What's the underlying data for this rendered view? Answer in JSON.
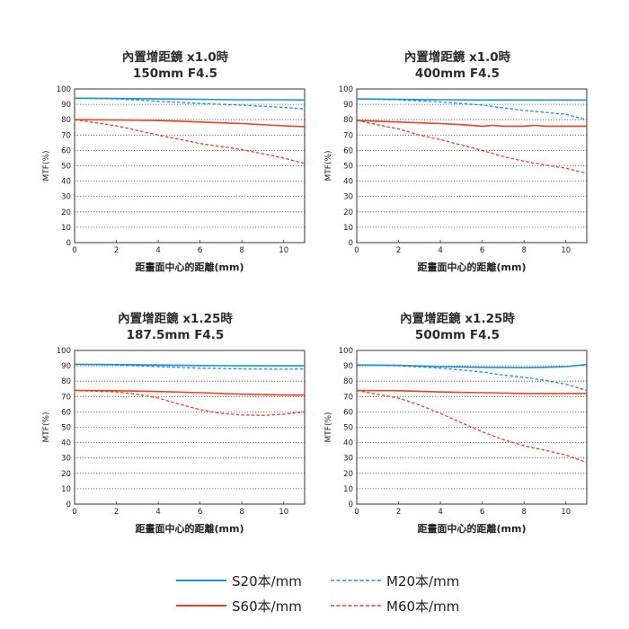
{
  "colors": {
    "s20": "#1a8fe0",
    "m20": "#1a8fe0",
    "s60": "#e8401c",
    "m60": "#e8401c",
    "grid": "#555555",
    "axis": "#333333"
  },
  "legend": {
    "s20": "S20本/mm",
    "m20": "M20本/mm",
    "s60": "S60本/mm",
    "m60": "M60本/mm"
  },
  "chart_data": [
    {
      "type": "line",
      "title": "內置增距鏡 x1.0時",
      "subtitle": "150mm F4.5",
      "xlabel": "距畫面中心的距離(mm)",
      "ylabel": "MTF(%)",
      "xlim": [
        0,
        11
      ],
      "ylim": [
        0,
        100
      ],
      "xticks": [
        0,
        2,
        4,
        6,
        8,
        10
      ],
      "yticks": [
        0,
        10,
        20,
        30,
        40,
        50,
        60,
        70,
        80,
        90,
        100
      ],
      "grid": true,
      "series": [
        {
          "name": "S20本/mm",
          "style": "solid",
          "color": "#1a8fe0",
          "x": [
            0,
            2,
            4,
            6,
            8,
            10,
            11
          ],
          "y": [
            94,
            93.8,
            93.5,
            93.2,
            93,
            93,
            92.8
          ]
        },
        {
          "name": "M20本/mm",
          "style": "dashed",
          "color": "#1a8fe0",
          "x": [
            0,
            2,
            4,
            6,
            8,
            10,
            11
          ],
          "y": [
            94,
            93.5,
            92,
            90.5,
            89.5,
            88,
            87
          ]
        },
        {
          "name": "S60本/mm",
          "style": "solid",
          "color": "#e8401c",
          "x": [
            0,
            2,
            4,
            6,
            8,
            10,
            11
          ],
          "y": [
            80,
            79.8,
            79.5,
            78.5,
            77.5,
            76,
            75.5
          ]
        },
        {
          "name": "M60本/mm",
          "style": "dashed",
          "color": "#e8401c",
          "x": [
            0,
            2,
            4,
            6,
            8,
            10,
            11
          ],
          "y": [
            80,
            76,
            70,
            64.5,
            60.5,
            55,
            51.5
          ]
        }
      ]
    },
    {
      "type": "line",
      "title": "內置增距鏡 x1.0時",
      "subtitle": "400mm F4.5",
      "xlabel": "距畫面中心的距離(mm)",
      "ylabel": "MTF(%)",
      "xlim": [
        0,
        11
      ],
      "ylim": [
        0,
        100
      ],
      "xticks": [
        0,
        2,
        4,
        6,
        8,
        10
      ],
      "yticks": [
        0,
        10,
        20,
        30,
        40,
        50,
        60,
        70,
        80,
        90,
        100
      ],
      "grid": true,
      "series": [
        {
          "name": "S20本/mm",
          "style": "solid",
          "color": "#1a8fe0",
          "x": [
            0,
            2,
            4,
            6,
            8,
            10,
            11
          ],
          "y": [
            93.5,
            93.2,
            93,
            92.8,
            92.8,
            92.8,
            92.8
          ]
        },
        {
          "name": "M20本/mm",
          "style": "dashed",
          "color": "#1a8fe0",
          "x": [
            0,
            2,
            4,
            6,
            8,
            10,
            11
          ],
          "y": [
            93.5,
            93,
            91.5,
            89.5,
            86,
            83.5,
            80
          ]
        },
        {
          "name": "S60本/mm",
          "style": "solid",
          "color": "#e8401c",
          "x": [
            0,
            2,
            4,
            5,
            6,
            6.5,
            7,
            8,
            8.5,
            9,
            10,
            11
          ],
          "y": [
            79.5,
            78.5,
            77.5,
            76.8,
            75.8,
            76.3,
            75.8,
            75.8,
            76.3,
            75.8,
            75.8,
            75.8
          ]
        },
        {
          "name": "M60本/mm",
          "style": "dashed",
          "color": "#e8401c",
          "x": [
            0,
            2,
            3,
            4,
            6,
            7,
            8,
            9,
            10,
            11
          ],
          "y": [
            79.5,
            74,
            70,
            67,
            60,
            56,
            53,
            50.5,
            48.5,
            45
          ]
        }
      ]
    },
    {
      "type": "line",
      "title": "內置增距鏡 x1.25時",
      "subtitle": "187.5mm F4.5",
      "xlabel": "距畫面中心的距離(mm)",
      "ylabel": "MTF(%)",
      "xlim": [
        0,
        11
      ],
      "ylim": [
        0,
        100
      ],
      "xticks": [
        0,
        2,
        4,
        6,
        8,
        10
      ],
      "yticks": [
        0,
        10,
        20,
        30,
        40,
        50,
        60,
        70,
        80,
        90,
        100
      ],
      "grid": true,
      "series": [
        {
          "name": "S20本/mm",
          "style": "solid",
          "color": "#1a8fe0",
          "x": [
            0,
            2,
            4,
            6,
            8,
            10,
            11
          ],
          "y": [
            91,
            90.8,
            90.5,
            90.2,
            90,
            90,
            90
          ]
        },
        {
          "name": "M20本/mm",
          "style": "dashed",
          "color": "#1a8fe0",
          "x": [
            0,
            2,
            4,
            6,
            8,
            10,
            11
          ],
          "y": [
            91,
            90.5,
            89.5,
            88.5,
            88,
            87.8,
            88
          ]
        },
        {
          "name": "S60本/mm",
          "style": "solid",
          "color": "#e8401c",
          "x": [
            0,
            2,
            4,
            6,
            8,
            10,
            11
          ],
          "y": [
            74,
            73.8,
            73.3,
            72.5,
            71.5,
            71,
            71
          ]
        },
        {
          "name": "M60本/mm",
          "style": "dashed",
          "color": "#e8401c",
          "x": [
            0,
            2,
            3,
            4,
            5,
            6,
            7,
            8,
            9,
            10,
            11
          ],
          "y": [
            74,
            73,
            71.5,
            69,
            65,
            61.5,
            59,
            58,
            57.8,
            58.5,
            60
          ]
        }
      ]
    },
    {
      "type": "line",
      "title": "內置增距鏡 x1.25時",
      "subtitle": "500mm F4.5",
      "xlabel": "距畫面中心的距離(mm)",
      "ylabel": "MTF(%)",
      "xlim": [
        0,
        11
      ],
      "ylim": [
        0,
        100
      ],
      "xticks": [
        0,
        2,
        4,
        6,
        8,
        10
      ],
      "yticks": [
        0,
        10,
        20,
        30,
        40,
        50,
        60,
        70,
        80,
        90,
        100
      ],
      "grid": true,
      "series": [
        {
          "name": "S20本/mm",
          "style": "solid",
          "color": "#1a8fe0",
          "x": [
            0,
            2,
            4,
            6,
            8,
            9,
            10,
            11
          ],
          "y": [
            90.5,
            90.3,
            89.5,
            89,
            88.8,
            89,
            89.5,
            90.8
          ]
        },
        {
          "name": "M20本/mm",
          "style": "dashed",
          "color": "#1a8fe0",
          "x": [
            0,
            2,
            4,
            6,
            7,
            8,
            9,
            10,
            11
          ],
          "y": [
            90.5,
            90,
            88.5,
            86,
            84,
            82.5,
            80.5,
            78,
            74
          ]
        },
        {
          "name": "S60本/mm",
          "style": "solid",
          "color": "#e8401c",
          "x": [
            0,
            2,
            4,
            6,
            8,
            10,
            11
          ],
          "y": [
            74,
            73.8,
            73,
            72.5,
            72,
            72,
            72
          ]
        },
        {
          "name": "M60本/mm",
          "style": "dashed",
          "color": "#e8401c",
          "x": [
            0,
            2,
            3,
            4,
            5,
            6,
            7,
            8,
            9,
            10,
            11
          ],
          "y": [
            74,
            69,
            64.5,
            59,
            53,
            47,
            42,
            38,
            35,
            32,
            27
          ]
        }
      ]
    }
  ]
}
